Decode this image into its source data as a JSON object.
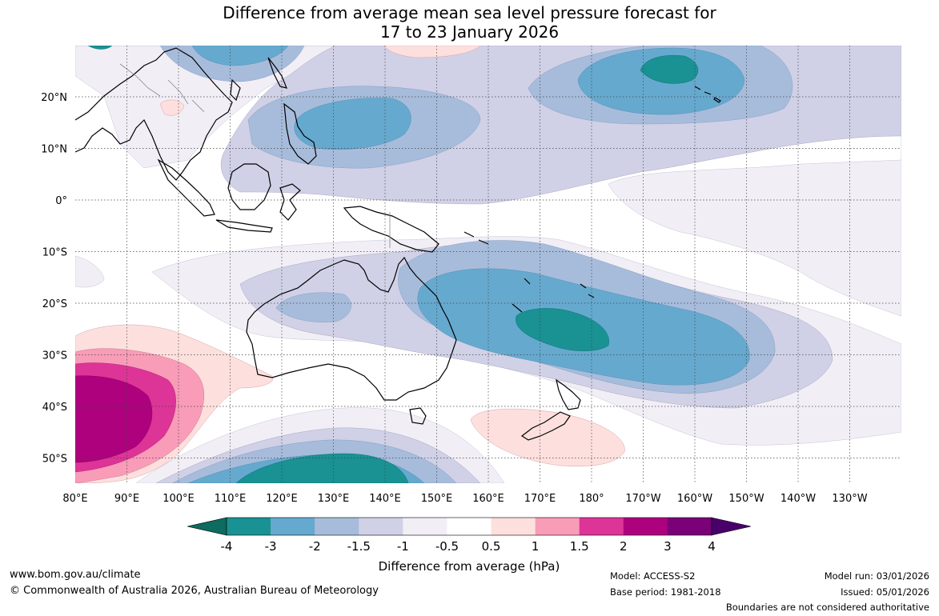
{
  "title": {
    "line1": "Difference from average mean sea level pressure forecast for",
    "line2": "17 to 23 January 2026"
  },
  "map": {
    "lat_labels": [
      "20°N",
      "10°N",
      "0°",
      "10°S",
      "20°S",
      "30°S",
      "40°S",
      "50°S"
    ],
    "lon_labels": [
      "80°E",
      "90°E",
      "100°E",
      "110°E",
      "120°E",
      "130°E",
      "140°E",
      "150°E",
      "160°E",
      "170°E",
      "180°",
      "170°W",
      "160°W",
      "150°W",
      "140°W",
      "130°W"
    ]
  },
  "colorbar": {
    "label": "Difference from average (hPa)",
    "ticks": [
      "-4",
      "-3",
      "-2",
      "-1.5",
      "-1",
      "-0.5",
      "0.5",
      "1",
      "1.5",
      "2",
      "3",
      "4"
    ],
    "colors": {
      "under": "#0d6b5f",
      "bins": [
        "#1a9193",
        "#66a9cf",
        "#a7bcdb",
        "#d0d1e6",
        "#f1eef6",
        "#ffffff",
        "#fde0dd",
        "#f89cb8",
        "#dd3497",
        "#ae017e",
        "#7a0177"
      ],
      "over": "#49006a"
    }
  },
  "footer": {
    "website": "www.bom.gov.au/climate",
    "copyright": "© Commonwealth of Australia 2026, Australian Bureau of Meteorology",
    "model": "Model: ACCESS-S2",
    "base_period": "Base period: 1981-2018",
    "model_run": "Model run: 03/01/2026",
    "issued": "Issued: 05/01/2026",
    "disclaimer": "Boundaries are not considered authoritative"
  }
}
